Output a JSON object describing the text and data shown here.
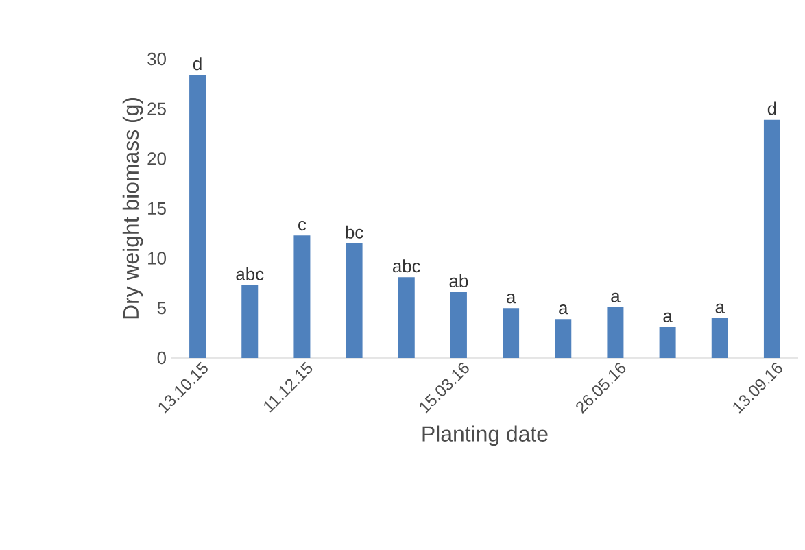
{
  "chart_data": {
    "type": "bar",
    "xlabel": "Planting date",
    "ylabel": "Dry weight biomass (g)",
    "categories": [
      "13.10.15",
      null,
      "11.12.15",
      null,
      null,
      "15.03.16",
      null,
      null,
      "26.05.16",
      null,
      null,
      "13.09.16"
    ],
    "values": [
      28.4,
      7.3,
      12.3,
      11.5,
      8.1,
      6.6,
      5.0,
      3.9,
      5.1,
      3.1,
      4.0,
      23.9
    ],
    "value_labels": [
      "d",
      "abc",
      "c",
      "bc",
      "abc",
      "ab",
      "a",
      "a",
      "a",
      "a",
      "a",
      "d"
    ],
    "color": "#4f81bd",
    "ylim": [
      0,
      30
    ],
    "yticks": [
      0,
      5,
      10,
      15,
      20,
      25,
      30
    ],
    "grid": false
  }
}
